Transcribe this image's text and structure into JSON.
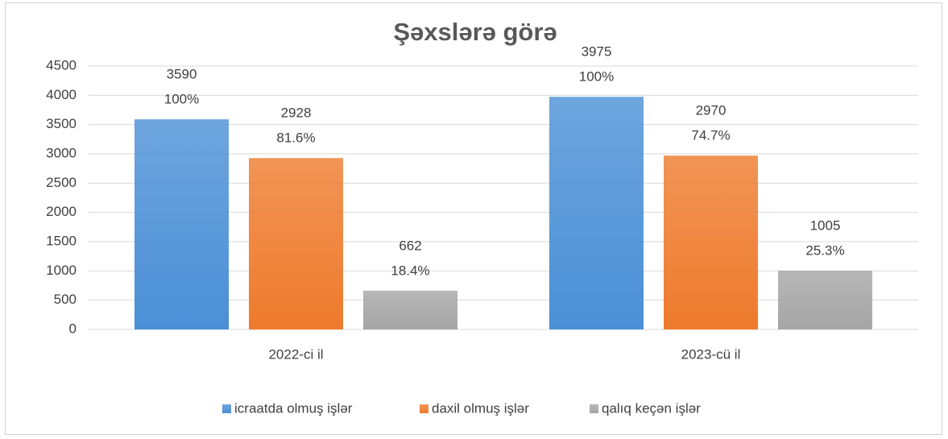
{
  "chart_data": {
    "type": "bar",
    "title": "Şəxslərə görə",
    "categories": [
      "2022-ci il",
      "2023-cü il"
    ],
    "series": [
      {
        "name": "icraatda olmuş işlər",
        "color": "#4a8fd6",
        "values": [
          3590,
          3975
        ],
        "share_labels": [
          "100%",
          "100%"
        ]
      },
      {
        "name": "daxil olmuş işlər",
        "color": "#ee7a2c",
        "values": [
          2928,
          2970
        ],
        "share_labels": [
          "81.6%",
          "74.7%"
        ]
      },
      {
        "name": "qalıq keçən işlər",
        "color": "#a5a5a5",
        "values": [
          662,
          1005
        ],
        "share_labels": [
          "18.4%",
          "25.3%"
        ]
      }
    ],
    "ylim": [
      0,
      4500
    ],
    "yticks": [
      0,
      500,
      1000,
      1500,
      2000,
      2500,
      3000,
      3500,
      4000,
      4500
    ],
    "grid": true,
    "legend": "bottom"
  }
}
